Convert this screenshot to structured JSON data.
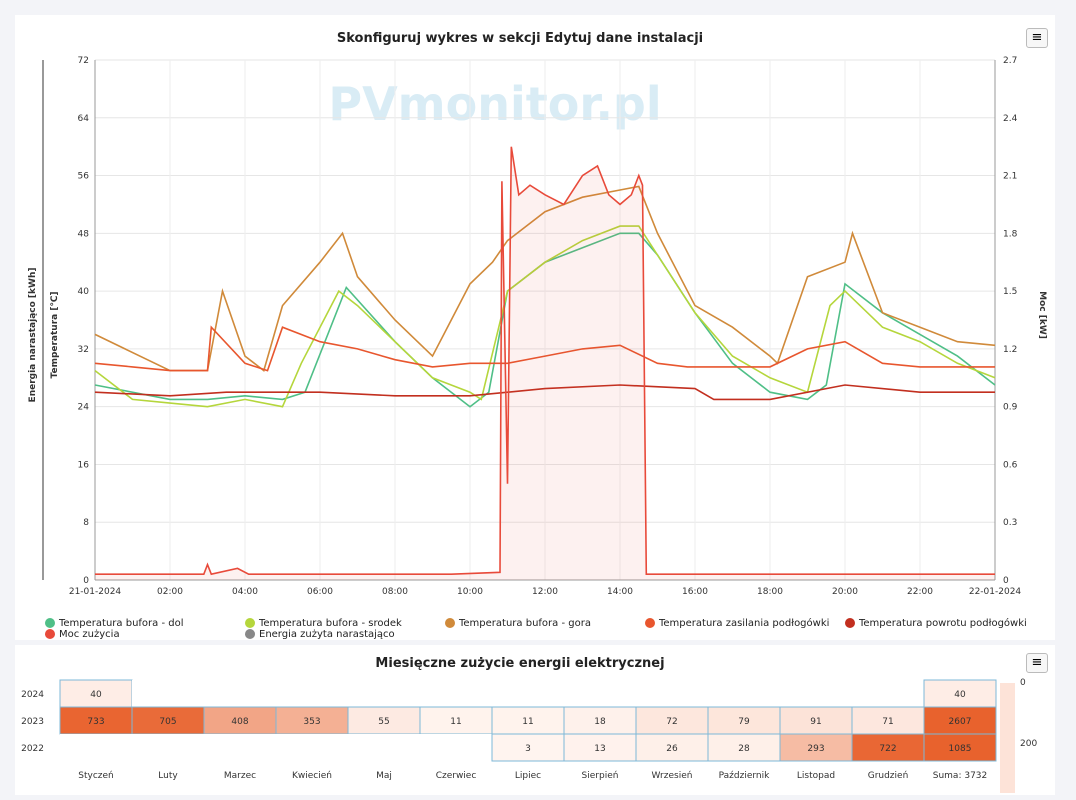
{
  "chart_data": [
    {
      "type": "line",
      "title": "Skonfiguruj wykres w sekcji Edytuj dane instalacji",
      "watermark": "PVmonitor.pl",
      "ylabel_outer": "Energia narastająco [kWh]",
      "ylabel_left": "Temperatura [℃]",
      "ylabel_right": "Moc [kW]",
      "y_left": [
        0,
        8,
        16,
        24,
        32,
        40,
        48,
        56,
        64,
        72
      ],
      "y_right": [
        "0",
        "0.3",
        "0.6",
        "0.9",
        "1.2",
        "1.5",
        "1.8",
        "2.1",
        "2.4",
        "2.7"
      ],
      "x_ticks": [
        "21-01-2024",
        "02:00",
        "04:00",
        "06:00",
        "08:00",
        "10:00",
        "12:00",
        "14:00",
        "16:00",
        "18:00",
        "20:00",
        "22:00",
        "22-01-2024"
      ],
      "series": [
        {
          "name": "Temperatura bufora - dol",
          "color": "#4fbf87",
          "x": [
            0,
            2,
            3,
            4,
            5,
            5.6,
            6.7,
            8,
            9,
            10,
            10.5,
            11,
            12,
            13,
            14,
            14.5,
            15,
            16,
            17,
            18,
            19,
            19.5,
            20,
            21,
            22,
            23,
            24
          ],
          "y": [
            27,
            25,
            25,
            25.5,
            25,
            26,
            40.5,
            33,
            28,
            24,
            26,
            40,
            44,
            46,
            48,
            48,
            45,
            37,
            30,
            26,
            25,
            27,
            41,
            37,
            34,
            31,
            27
          ]
        },
        {
          "name": "Temperatura bufora - srodek",
          "color": "#b5d63c",
          "x": [
            0,
            1,
            2,
            3,
            4,
            5,
            5.5,
            6.5,
            7,
            8,
            9,
            10,
            10.3,
            11,
            12,
            13,
            14,
            14.5,
            15,
            16,
            17,
            18,
            19,
            19.6,
            20,
            21,
            22,
            23,
            24
          ],
          "y": [
            29,
            25,
            24.5,
            24,
            25,
            24,
            30,
            40,
            38,
            33,
            28,
            26,
            25,
            40,
            44,
            47,
            49,
            49,
            45,
            37,
            31,
            28,
            26,
            38,
            40,
            35,
            33,
            30,
            28
          ]
        },
        {
          "name": "Temperatura bufora - gora",
          "color": "#d08a3a",
          "x": [
            0,
            0.8,
            2,
            3,
            3.4,
            4,
            4.5,
            5,
            6,
            6.6,
            7,
            8,
            9,
            9.3,
            10,
            10.6,
            11,
            12,
            13,
            14,
            14.5,
            15,
            16,
            17,
            18,
            18.2,
            19,
            20,
            20.2,
            21,
            22,
            23,
            24
          ],
          "y": [
            34,
            32,
            29,
            29,
            40,
            31,
            29,
            38,
            44,
            48,
            42,
            36,
            31,
            34,
            41,
            44,
            47,
            51,
            53,
            54,
            54.5,
            48,
            38,
            35,
            31,
            30,
            42,
            44,
            48,
            37,
            35,
            33,
            32.5
          ]
        },
        {
          "name": "Temperatura zasilania podłogówki",
          "color": "#e8562e",
          "x": [
            0,
            1,
            2,
            3,
            3.1,
            4,
            4.6,
            5,
            6,
            7,
            8,
            9,
            10,
            11,
            12,
            13,
            14,
            15,
            15.8,
            17,
            18,
            19,
            20,
            21,
            22,
            23,
            24
          ],
          "y": [
            30,
            29.5,
            29,
            29,
            35,
            30,
            29,
            35,
            33,
            32,
            30.5,
            29.5,
            30,
            30,
            31,
            32,
            32.5,
            30,
            29.5,
            29.5,
            29.5,
            32,
            33,
            30,
            29.5,
            29.5,
            29.5
          ]
        },
        {
          "name": "Temperatura powrotu podłogówki",
          "color": "#c22f1f",
          "x": [
            0,
            2,
            3.5,
            6,
            8,
            10,
            12,
            14,
            16,
            16.5,
            18,
            20,
            22,
            24
          ],
          "y": [
            26,
            25.5,
            26,
            26,
            25.5,
            25.5,
            26.5,
            27,
            26.5,
            25,
            25,
            27,
            26,
            26
          ]
        },
        {
          "name": "Moc zużycia",
          "color": "#e84a3a",
          "axis": "right",
          "x": [
            0,
            2.9,
            3,
            3.1,
            3.8,
            4.1,
            9.5,
            10.8,
            10.85,
            11,
            11.1,
            11.3,
            11.6,
            12,
            12.5,
            13,
            13.4,
            13.7,
            14,
            14.3,
            14.5,
            14.6,
            14.7,
            15,
            20,
            24
          ],
          "y": [
            0.03,
            0.03,
            0.08,
            0.03,
            0.06,
            0.03,
            0.03,
            0.04,
            2.07,
            0.5,
            2.25,
            2.0,
            2.05,
            2.0,
            1.95,
            2.1,
            2.15,
            2.0,
            1.95,
            2.0,
            2.1,
            2.05,
            0.03,
            0.03,
            0.03,
            0.03
          ]
        },
        {
          "name": "Energia zużyta narastająco",
          "color": "#888888",
          "hidden": true
        }
      ]
    },
    {
      "type": "heatmap",
      "title": "Miesięczne zużycie energii elektrycznej",
      "rows": [
        "2024",
        "2023",
        "2022"
      ],
      "cols": [
        "Styczeń",
        "Luty",
        "Marzec",
        "Kwiecień",
        "Maj",
        "Czerwiec",
        "Lipiec",
        "Sierpień",
        "Wrzesień",
        "Październik",
        "Listopad",
        "Grudzień",
        "Suma: 3732"
      ],
      "values": [
        [
          40,
          null,
          null,
          null,
          null,
          null,
          null,
          null,
          null,
          null,
          null,
          null,
          40
        ],
        [
          733,
          705,
          408,
          353,
          55,
          11,
          11,
          18,
          72,
          79,
          91,
          71,
          2607
        ],
        [
          null,
          null,
          null,
          null,
          null,
          null,
          3,
          13,
          26,
          28,
          293,
          722,
          1085
        ]
      ],
      "scale_labels": [
        "0",
        "200"
      ]
    }
  ]
}
